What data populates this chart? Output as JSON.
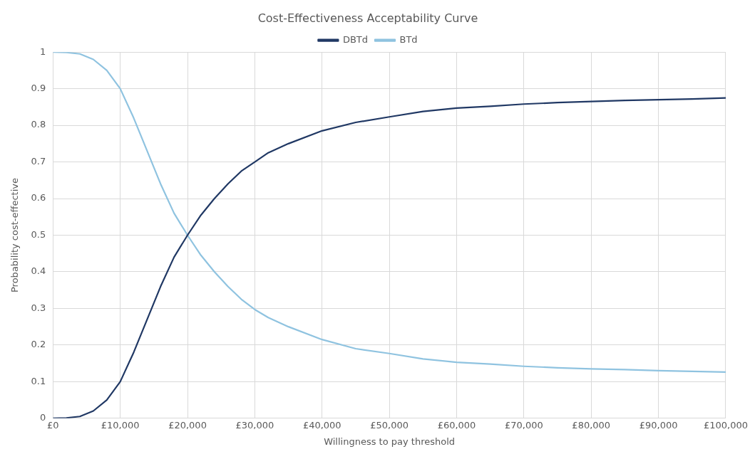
{
  "chart_data": {
    "type": "line",
    "title": "Cost-Effectiveness Acceptability Curve",
    "xlabel": "Willingness to pay threshold",
    "ylabel": "Probability cost-effective",
    "x": [
      0,
      2000,
      4000,
      6000,
      8000,
      10000,
      12000,
      14000,
      16000,
      18000,
      20000,
      22000,
      24000,
      26000,
      28000,
      30000,
      32000,
      35000,
      40000,
      45000,
      50000,
      55000,
      60000,
      65000,
      70000,
      75000,
      80000,
      85000,
      90000,
      95000,
      100000
    ],
    "series": [
      {
        "name": "DBTd",
        "color": "#203864",
        "values": [
          0,
          0.001,
          0.005,
          0.02,
          0.05,
          0.1,
          0.18,
          0.27,
          0.36,
          0.44,
          0.5,
          0.555,
          0.6,
          0.64,
          0.675,
          0.7,
          0.725,
          0.75,
          0.785,
          0.808,
          0.823,
          0.838,
          0.847,
          0.852,
          0.858,
          0.862,
          0.865,
          0.868,
          0.87,
          0.872,
          0.875
        ]
      },
      {
        "name": "BTd",
        "color": "#8fc3e0",
        "values": [
          1,
          0.999,
          0.995,
          0.98,
          0.95,
          0.9,
          0.82,
          0.73,
          0.64,
          0.56,
          0.5,
          0.445,
          0.4,
          0.36,
          0.325,
          0.297,
          0.275,
          0.25,
          0.215,
          0.19,
          0.177,
          0.162,
          0.153,
          0.148,
          0.142,
          0.138,
          0.135,
          0.133,
          0.13,
          0.128,
          0.126
        ]
      }
    ],
    "xlim": [
      0,
      100000
    ],
    "xticks": [
      {
        "value": 0,
        "label": "£0"
      },
      {
        "value": 10000,
        "label": "£10,000"
      },
      {
        "value": 20000,
        "label": "£20,000"
      },
      {
        "value": 30000,
        "label": "£30,000"
      },
      {
        "value": 40000,
        "label": "£40,000"
      },
      {
        "value": 50000,
        "label": "£50,000"
      },
      {
        "value": 60000,
        "label": "£60,000"
      },
      {
        "value": 70000,
        "label": "£70,000"
      },
      {
        "value": 80000,
        "label": "£80,000"
      },
      {
        "value": 90000,
        "label": "£90,000"
      },
      {
        "value": 100000,
        "label": "£100,000"
      }
    ],
    "ylim": [
      0,
      1
    ],
    "yticks": [
      0,
      0.1,
      0.2,
      0.3,
      0.4,
      0.5,
      0.6,
      0.7,
      0.8,
      0.9,
      1
    ],
    "grid": true,
    "legend": "top",
    "marker": "none",
    "line_style": "solid"
  }
}
